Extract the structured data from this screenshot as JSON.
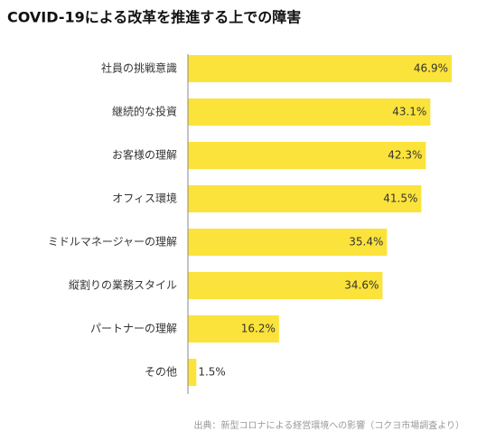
{
  "chart_data": {
    "type": "bar",
    "orientation": "horizontal",
    "title": "COVID-19による改革を推進する上での障害",
    "categories": [
      "社員の挑戦意識",
      "継続的な投資",
      "お客様の理解",
      "オフィス環境",
      "ミドルマネージャーの理解",
      "縦割りの業務スタイル",
      "パートナーの理解",
      "その他"
    ],
    "values": [
      46.9,
      43.1,
      42.3,
      41.5,
      35.4,
      34.6,
      16.2,
      1.5
    ],
    "value_labels": [
      "46.9%",
      "43.1%",
      "42.3%",
      "41.5%",
      "35.4%",
      "34.6%",
      "16.2%",
      "1.5%"
    ],
    "color": "#fbe33b",
    "source": "出典：新型コロナによる経営環境への影響（コクヨ市場調査より）"
  }
}
